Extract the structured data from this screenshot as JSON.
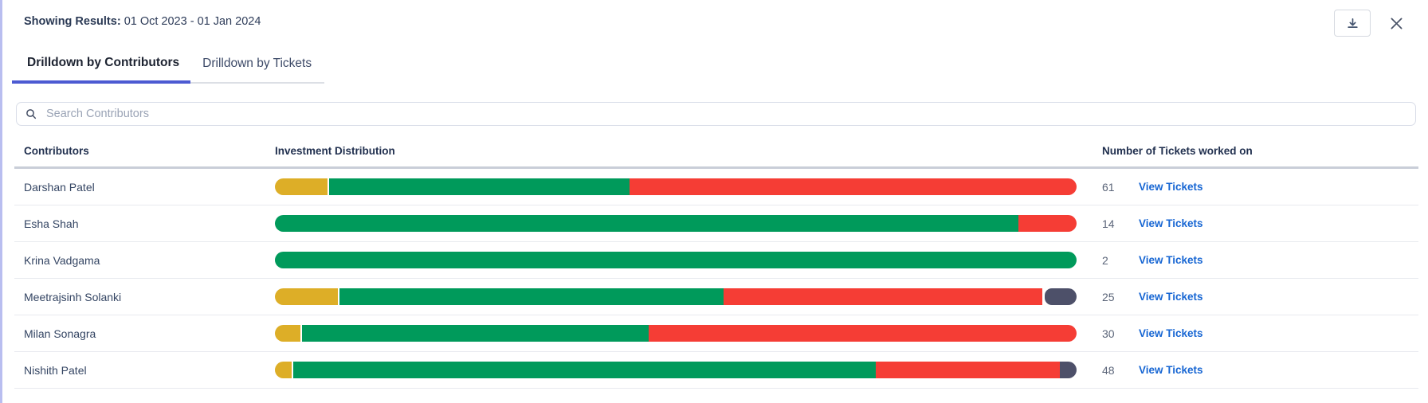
{
  "header": {
    "label": "Showing Results:",
    "date_range": "01 Oct 2023 - 01 Jan 2024"
  },
  "tabs": [
    {
      "label": "Drilldown by Contributors",
      "active": true
    },
    {
      "label": "Drilldown by Tickets",
      "active": false
    }
  ],
  "search": {
    "placeholder": "Search Contributors"
  },
  "colors": {
    "yellow": "#ddae27",
    "green": "#009a5b",
    "red": "#f53d35",
    "dark": "#4d5069",
    "tab_underline": "#4c5ad2",
    "link_blue": "#1766d3"
  },
  "table": {
    "columns": [
      "Contributors",
      "Investment Distribution",
      "Number of Tickets worked on"
    ],
    "link_label": "View Tickets",
    "rows": [
      {
        "name": "Darshan Patel",
        "tickets": "61",
        "segments": [
          {
            "color": "yellow",
            "pct": 6.6,
            "gap_after": true
          },
          {
            "color": "green",
            "pct": 37.5
          },
          {
            "color": "red",
            "pct": 55.9
          }
        ]
      },
      {
        "name": "Esha Shah",
        "tickets": "14",
        "segments": [
          {
            "color": "green",
            "pct": 92.7
          },
          {
            "color": "red",
            "pct": 7.3
          }
        ]
      },
      {
        "name": "Krina Vadgama",
        "tickets": "2",
        "segments": [
          {
            "color": "green",
            "pct": 100
          }
        ]
      },
      {
        "name": "Meetrajsinh Solanki",
        "tickets": "25",
        "segments": [
          {
            "color": "yellow",
            "pct": 7.9,
            "gap_after": true
          },
          {
            "color": "green",
            "pct": 48.1
          },
          {
            "color": "red",
            "pct": 40.0
          },
          {
            "color": "dark",
            "pct": 4.0,
            "gap_before": true
          }
        ]
      },
      {
        "name": "Milan Sonagra",
        "tickets": "30",
        "segments": [
          {
            "color": "yellow",
            "pct": 3.2,
            "gap_after": true
          },
          {
            "color": "green",
            "pct": 43.3
          },
          {
            "color": "red",
            "pct": 53.5
          }
        ]
      },
      {
        "name": "Nishith Patel",
        "tickets": "48",
        "segments": [
          {
            "color": "yellow",
            "pct": 2.1,
            "gap_after": true
          },
          {
            "color": "green",
            "pct": 72.8
          },
          {
            "color": "red",
            "pct": 23.0
          },
          {
            "color": "dark",
            "pct": 2.1
          }
        ]
      }
    ]
  },
  "chart_data": {
    "type": "bar",
    "orientation": "horizontal",
    "stacked": true,
    "unit": "percent of bar width",
    "title": "Investment Distribution",
    "categories": [
      "Darshan Patel",
      "Esha Shah",
      "Krina Vadgama",
      "Meetrajsinh Solanki",
      "Milan Sonagra",
      "Nishith Patel"
    ],
    "series": [
      {
        "name": "yellow",
        "color": "#ddae27",
        "values": [
          6.6,
          0,
          0,
          7.9,
          3.2,
          2.1
        ]
      },
      {
        "name": "green",
        "color": "#009a5b",
        "values": [
          37.5,
          92.7,
          100,
          48.1,
          43.3,
          72.8
        ]
      },
      {
        "name": "red",
        "color": "#f53d35",
        "values": [
          55.9,
          7.3,
          0,
          40.0,
          53.5,
          23.0
        ]
      },
      {
        "name": "dark",
        "color": "#4d5069",
        "values": [
          0,
          0,
          0,
          4.0,
          0,
          2.1
        ]
      }
    ],
    "tickets_worked_on": [
      61,
      14,
      2,
      25,
      30,
      48
    ],
    "legend": "none shown",
    "grid": false
  }
}
